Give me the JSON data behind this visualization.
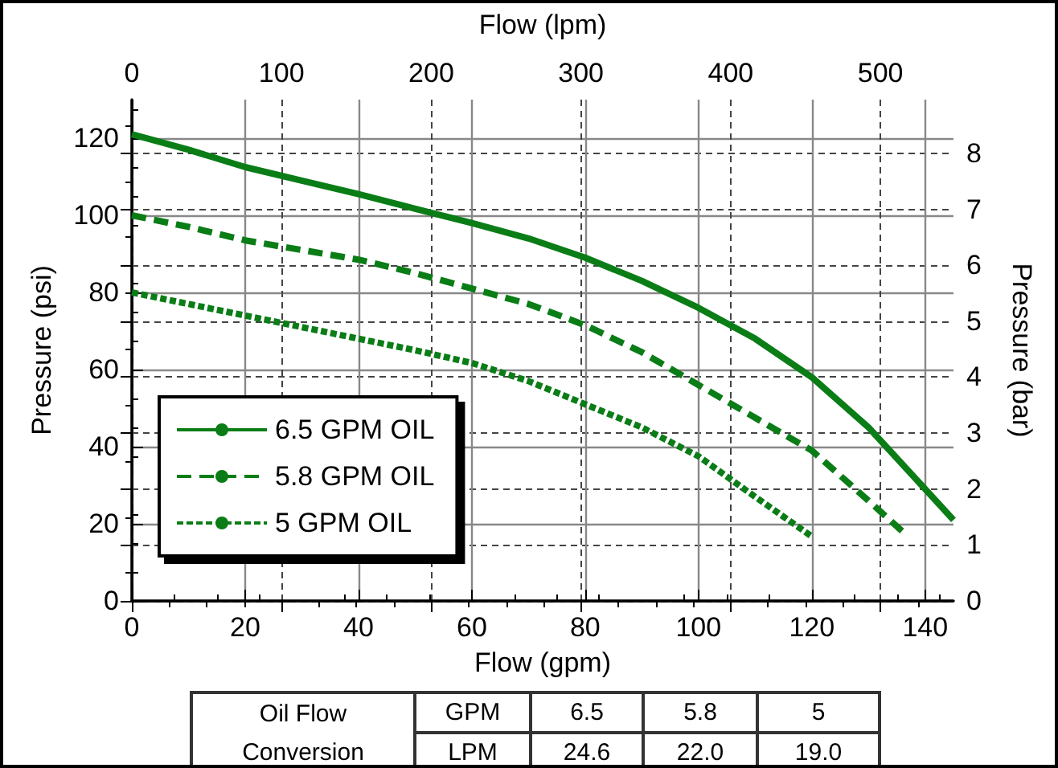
{
  "chart_data": {
    "type": "line",
    "xlabel": "Flow (gpm)",
    "x2label": "Flow (lpm)",
    "ylabel": "Pressure (psi)",
    "y2label": "Pressure (bar)",
    "xlim": [
      0,
      145
    ],
    "xticks": [
      0,
      20,
      40,
      60,
      80,
      100,
      120,
      140
    ],
    "x2lim": [
      0,
      548.8
    ],
    "x2ticks": [
      0,
      100,
      200,
      300,
      400,
      500
    ],
    "ylim": [
      0,
      130
    ],
    "yticks": [
      0,
      20,
      40,
      60,
      80,
      100,
      120
    ],
    "y2lim": [
      0,
      8.96
    ],
    "y2ticks": [
      0,
      1,
      2,
      3,
      4,
      5,
      6,
      7,
      8
    ],
    "grid": true,
    "legend": "bottom left",
    "marker": "none",
    "series": [
      {
        "name": "6.5 GPM OIL",
        "color": "#0a7d16",
        "line_style": "solid",
        "x": [
          0,
          10,
          20,
          30,
          40,
          50,
          60,
          70,
          80,
          90,
          100,
          110,
          120,
          130,
          140,
          145
        ],
        "values": [
          121,
          117,
          112.5,
          109,
          105.5,
          101.7,
          98,
          94,
          89,
          83,
          76,
          68,
          58,
          45,
          29,
          21
        ]
      },
      {
        "name": "5.8 GPM OIL",
        "color": "#0a7d16",
        "line_style": "dashed",
        "x": [
          0,
          10,
          20,
          30,
          40,
          50,
          60,
          70,
          80,
          90,
          100,
          110,
          120,
          130,
          136
        ],
        "values": [
          100,
          97,
          93.5,
          91,
          88.5,
          85,
          81,
          77,
          71.5,
          64.5,
          56,
          47.5,
          39,
          26,
          18
        ]
      },
      {
        "name": "5 GPM OIL",
        "color": "#0a7d16",
        "line_style": "dotted",
        "x": [
          0,
          10,
          20,
          30,
          40,
          50,
          60,
          70,
          80,
          90,
          100,
          110,
          120
        ],
        "values": [
          80,
          77,
          74,
          71,
          68,
          65,
          61.7,
          57,
          51,
          45,
          37.5,
          27,
          16.7
        ]
      }
    ],
    "annotations": [
      "Oil Flow",
      "Conversion",
      "GPM",
      "6.5",
      "5.8",
      "5",
      "LPM",
      "24.6",
      "22.0",
      "19.0"
    ]
  }
}
